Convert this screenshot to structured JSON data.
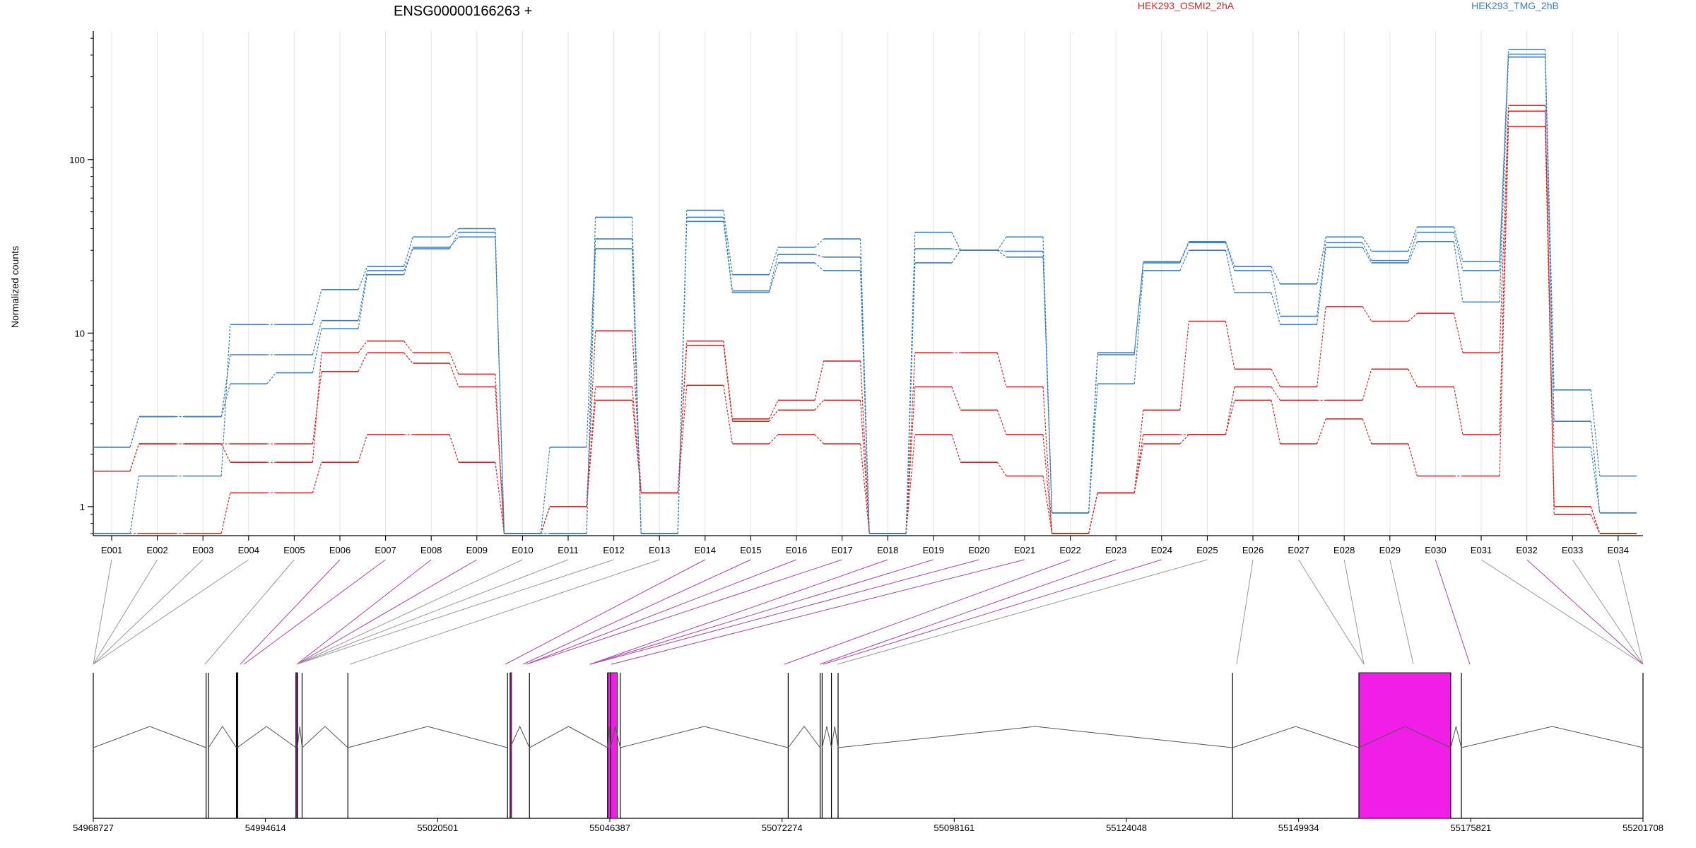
{
  "chart_data": {
    "type": "line",
    "title": "ENSG00000166263 +",
    "xlabel": "",
    "ylabel": "Normalized counts",
    "yscale": "log",
    "ylim": [
      0.68,
      550
    ],
    "yticks": [
      {
        "value": 1,
        "label": "1"
      },
      {
        "value": 10,
        "label": "10"
      },
      {
        "value": 100,
        "label": "100"
      }
    ],
    "grid": "vertical",
    "legend_placement": "top",
    "categories": [
      "E001",
      "E002",
      "E003",
      "E004",
      "E005",
      "E006",
      "E007",
      "E008",
      "E009",
      "E010",
      "E011",
      "E012",
      "E013",
      "E014",
      "E015",
      "E016",
      "E017",
      "E018",
      "E019",
      "E020",
      "E021",
      "E022",
      "E023",
      "E024",
      "E025",
      "E026",
      "E027",
      "E028",
      "E029",
      "E030",
      "E031",
      "E032",
      "E033",
      "E034"
    ],
    "conditions": [
      {
        "name": "HEK293_OSMI2_2hA",
        "color": "#d62728"
      },
      {
        "name": "HEK293_TMG_2hB",
        "color": "#3a7fc1"
      }
    ],
    "series": [
      {
        "condition": "HEK293_OSMI2_2hA",
        "values": [
          1.6,
          2.3,
          2.3,
          2.3,
          2.3,
          6.0,
          7.7,
          6.7,
          4.9,
          0.7,
          1.0,
          4.1,
          1.2,
          5.0,
          2.3,
          2.6,
          2.3,
          0.7,
          2.6,
          1.8,
          1.5,
          0.7,
          1.2,
          2.3,
          2.6,
          4.1,
          2.3,
          3.2,
          2.3,
          1.5,
          1.5,
          155,
          0.9,
          0.7
        ]
      },
      {
        "condition": "HEK293_OSMI2_2hA",
        "values": [
          0.7,
          0.7,
          0.7,
          1.2,
          1.2,
          1.8,
          2.6,
          2.6,
          1.8,
          0.7,
          1.0,
          4.9,
          1.2,
          8.5,
          3.1,
          3.6,
          4.1,
          0.7,
          4.9,
          3.6,
          2.6,
          0.7,
          1.2,
          2.6,
          2.6,
          4.9,
          4.1,
          4.1,
          6.2,
          4.9,
          2.6,
          190,
          1.0,
          0.7
        ]
      },
      {
        "condition": "HEK293_OSMI2_2hA",
        "values": [
          1.6,
          2.3,
          2.3,
          1.8,
          1.8,
          7.7,
          9.0,
          7.7,
          5.8,
          0.7,
          1.0,
          10.3,
          1.2,
          9.0,
          3.2,
          4.1,
          6.9,
          0.7,
          7.7,
          7.7,
          4.9,
          0.7,
          1.2,
          3.6,
          11.7,
          6.2,
          4.9,
          14.2,
          11.7,
          13.0,
          7.7,
          205,
          1.0,
          0.7
        ]
      },
      {
        "condition": "HEK293_TMG_2hB",
        "values": [
          2.2,
          3.3,
          3.3,
          5.1,
          5.9,
          10.6,
          21.7,
          31.2,
          35.8,
          0.7,
          0.7,
          30.6,
          0.7,
          44.0,
          17.1,
          25.4,
          22.9,
          0.7,
          25.4,
          30.0,
          27.4,
          0.92,
          5.1,
          22.9,
          30.0,
          17.1,
          11.2,
          31.2,
          25.4,
          33.7,
          15.1,
          390,
          2.2,
          0.92
        ]
      },
      {
        "condition": "HEK293_TMG_2hB",
        "values": [
          2.2,
          3.3,
          3.3,
          7.5,
          7.5,
          11.8,
          22.9,
          30.6,
          38.1,
          0.7,
          2.2,
          34.9,
          0.7,
          46.5,
          17.5,
          28.4,
          27.4,
          0.7,
          30.6,
          30.0,
          29.6,
          0.92,
          7.5,
          25.4,
          33.2,
          22.9,
          12.5,
          33.2,
          26.2,
          38.1,
          22.9,
          405,
          3.1,
          0.92
        ]
      },
      {
        "condition": "HEK293_TMG_2hB",
        "values": [
          0.7,
          1.5,
          1.5,
          11.2,
          11.2,
          17.8,
          24.2,
          35.8,
          40.0,
          0.7,
          0.7,
          46.5,
          0.7,
          51.0,
          21.7,
          31.2,
          34.9,
          0.7,
          38.1,
          30.0,
          35.8,
          0.92,
          7.7,
          25.8,
          33.7,
          24.2,
          19.2,
          35.8,
          29.6,
          40.9,
          25.8,
          430,
          4.7,
          1.5
        ]
      }
    ],
    "gene_model": {
      "coordinate_labels": [
        "54968727",
        "54994614",
        "55020501",
        "55046387",
        "55072274",
        "55098161",
        "55124048",
        "55149934",
        "55175821",
        "55201708"
      ],
      "coordinate_min": 54968727,
      "coordinate_max": 55201708,
      "exon_starts": [
        54968727,
        54985690,
        54986050,
        54990250,
        54990350,
        54999200,
        54999420,
        55000120,
        55007000,
        55031000,
        55031400,
        55034300,
        55046050,
        55046500,
        55047950,
        55073200,
        55078000,
        55078300,
        55079700,
        55080700,
        55140000,
        55159000,
        55172800,
        55174400,
        55201708
      ],
      "connected_exons": [
        "E001",
        "E002",
        "E003",
        "E004",
        "E005",
        "E006",
        "E007",
        "E008",
        "E009",
        "E010",
        "E011",
        "E012",
        "E013",
        "E014",
        "E015",
        "E016",
        "E017",
        "E018",
        "E019",
        "E020",
        "E021",
        "E022",
        "E023",
        "E024",
        "E025",
        "E026",
        "E027",
        "E028",
        "E029",
        "E030",
        "E031",
        "E032",
        "E033",
        "E034"
      ],
      "highlighted_exons": [
        "E006",
        "E007",
        "E008",
        "E009",
        "E014",
        "E015",
        "E016",
        "E017",
        "E018",
        "E019",
        "E020",
        "E021",
        "E022",
        "E023",
        "E024",
        "E030",
        "E032"
      ],
      "highlight_color": "#f01ee6",
      "feature_color": "#555555"
    }
  }
}
